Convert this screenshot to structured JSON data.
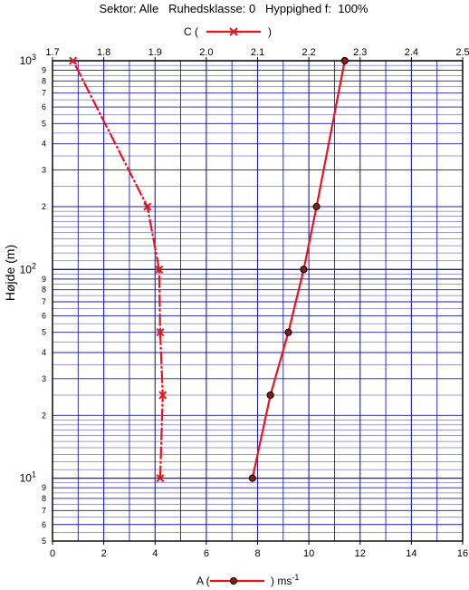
{
  "chart_data": {
    "type": "line",
    "title": "Sektor: Alle   Ruhedsklasse: 0   Hyppighed f:  100%",
    "ylabel": "Højde (m)",
    "y_scale": "log",
    "ylim": [
      5,
      1000
    ],
    "y_tick_labels": {
      "minor": [
        {
          "value": 5,
          "label": "5"
        },
        {
          "value": 6,
          "label": "6"
        },
        {
          "value": 7,
          "label": "7"
        },
        {
          "value": 8,
          "label": "8"
        },
        {
          "value": 9,
          "label": "9"
        },
        {
          "value": 20,
          "label": "2"
        },
        {
          "value": 30,
          "label": "3"
        },
        {
          "value": 40,
          "label": "4"
        },
        {
          "value": 50,
          "label": "5"
        },
        {
          "value": 60,
          "label": "6"
        },
        {
          "value": 70,
          "label": "7"
        },
        {
          "value": 80,
          "label": "8"
        },
        {
          "value": 90,
          "label": "9"
        },
        {
          "value": 200,
          "label": "2"
        },
        {
          "value": 300,
          "label": "3"
        },
        {
          "value": 400,
          "label": "4"
        },
        {
          "value": 500,
          "label": "5"
        },
        {
          "value": 600,
          "label": "6"
        },
        {
          "value": 700,
          "label": "7"
        },
        {
          "value": 800,
          "label": "8"
        },
        {
          "value": 900,
          "label": "9"
        }
      ],
      "major": [
        {
          "value": 10,
          "base": "10",
          "exp": "1"
        },
        {
          "value": 100,
          "base": "10",
          "exp": "2"
        },
        {
          "value": 1000,
          "base": "10",
          "exp": "3"
        }
      ]
    },
    "x_bottom": {
      "label_prefix": "A (",
      "label_suffix": ") ms",
      "label_exp": "-1",
      "range": [
        0,
        16
      ],
      "ticks": [
        "0",
        "2",
        "4",
        "6",
        "8",
        "10",
        "12",
        "14",
        "16"
      ]
    },
    "x_top": {
      "label_prefix": "C (",
      "label_suffix": ")",
      "range": [
        1.7,
        2.5
      ],
      "ticks": [
        "1.7",
        "1.8",
        "1.9",
        "2.0",
        "2.1",
        "2.2",
        "2.3",
        "2.4",
        "2.5"
      ]
    },
    "series": [
      {
        "axis": "bottom",
        "marker": "circle",
        "color": "#e8141b",
        "points": [
          {
            "x": 7.8,
            "y": 10
          },
          {
            "x": 8.5,
            "y": 25
          },
          {
            "x": 9.2,
            "y": 50
          },
          {
            "x": 9.8,
            "y": 100
          },
          {
            "x": 10.3,
            "y": 200
          },
          {
            "x": 11.4,
            "y": 1000
          }
        ]
      },
      {
        "axis": "top",
        "marker": "x",
        "color": "#e8141b",
        "points": [
          {
            "x": 1.91,
            "y": 10
          },
          {
            "x": 1.915,
            "y": 25
          },
          {
            "x": 1.91,
            "y": 50
          },
          {
            "x": 1.908,
            "y": 100
          },
          {
            "x": 1.885,
            "y": 200
          },
          {
            "x": 1.74,
            "y": 1000
          }
        ]
      }
    ],
    "grid": true,
    "colors": {
      "grid": "#1f1fa3",
      "series": "#e8141b",
      "frame": "#000000"
    }
  }
}
